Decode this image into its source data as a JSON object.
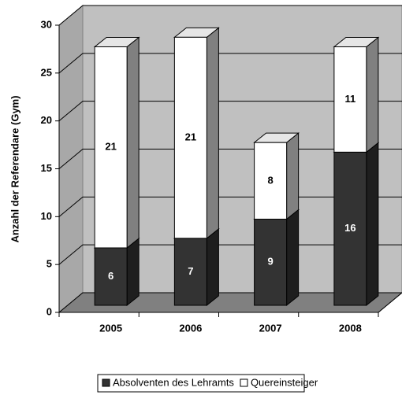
{
  "chart_data": {
    "type": "bar3d_stacked",
    "y_label": "Anzahl der Referendare (Gym)",
    "categories": [
      "2005",
      "2006",
      "2007",
      "2008"
    ],
    "series": [
      {
        "name": "Absolventen des Lehramts",
        "color": "#333333",
        "values": [
          6,
          7,
          9,
          16
        ]
      },
      {
        "name": "Quereinsteiger",
        "color": "#ffffff",
        "values": [
          21,
          21,
          8,
          11
        ]
      }
    ],
    "ylim": [
      0,
      30
    ],
    "yticks": [
      0,
      5,
      10,
      15,
      20,
      25,
      30
    ],
    "grid": true,
    "legend": "bottom"
  }
}
